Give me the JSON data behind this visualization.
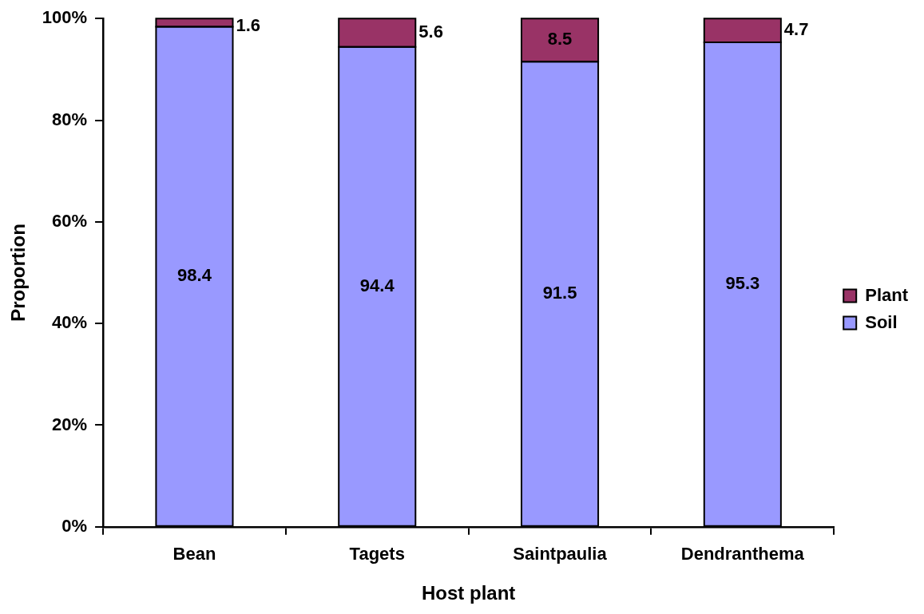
{
  "chart_data": {
    "type": "bar",
    "stacked": true,
    "xlabel": "Host plant",
    "ylabel": "Proportion",
    "categories": [
      "Bean",
      "Tagets",
      "Saintpaulia",
      "Dendranthema"
    ],
    "series": [
      {
        "name": "Soil",
        "color": "#9999ff",
        "values": [
          98.4,
          94.4,
          91.5,
          95.3
        ]
      },
      {
        "name": "Plant",
        "color": "#993366",
        "values": [
          1.6,
          5.6,
          8.5,
          4.7
        ]
      }
    ],
    "ylim": [
      0,
      100
    ],
    "yticks": [
      {
        "value": 0,
        "label": "0%"
      },
      {
        "value": 20,
        "label": "20%"
      },
      {
        "value": 40,
        "label": "40%"
      },
      {
        "value": 60,
        "label": "60%"
      },
      {
        "value": 80,
        "label": "80%"
      },
      {
        "value": 100,
        "label": "100%"
      }
    ],
    "grid": false,
    "legend": "right",
    "data_labels": true
  }
}
